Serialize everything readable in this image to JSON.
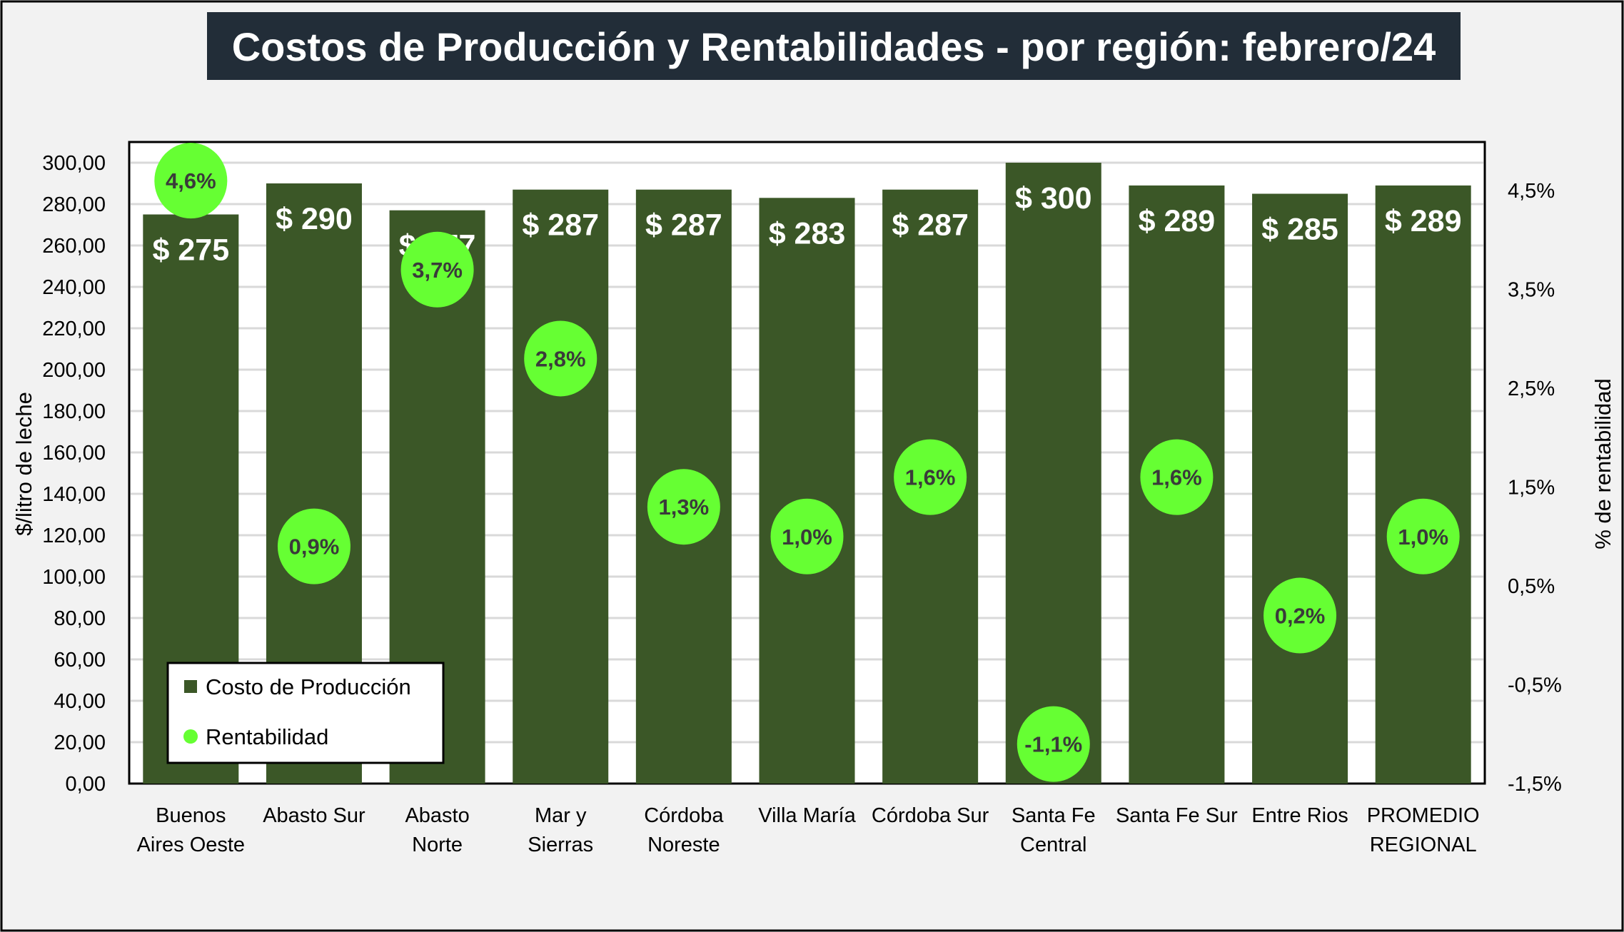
{
  "chart_data": {
    "type": "bar",
    "title": "Costos de Producción y Rentabilidades - por región: febrero/24",
    "categories": [
      [
        "Buenos",
        "Aires Oeste"
      ],
      [
        "Abasto Sur"
      ],
      [
        "Abasto",
        "Norte"
      ],
      [
        "Mar y",
        "Sierras"
      ],
      [
        "Córdoba",
        "Noreste"
      ],
      [
        "Villa María"
      ],
      [
        "Córdoba Sur"
      ],
      [
        "Santa Fe",
        "Central"
      ],
      [
        "Santa Fe Sur"
      ],
      [
        "Entre Rios"
      ],
      [
        "PROMEDIO",
        "REGIONAL"
      ]
    ],
    "series": [
      {
        "name": "Costo de Producción",
        "axis": "left",
        "type": "bar",
        "color": "#3b5727",
        "values": [
          275,
          290,
          277,
          287,
          287,
          283,
          287,
          300,
          289,
          285,
          289
        ],
        "labels": [
          "$ 275",
          "$ 290",
          "$ 277",
          "$ 287",
          "$ 287",
          "$ 283",
          "$ 287",
          "$ 300",
          "$ 289",
          "$ 285",
          "$ 289"
        ]
      },
      {
        "name": "Rentabilidad",
        "axis": "right",
        "type": "scatter",
        "color": "#66ff33",
        "values": [
          4.6,
          0.9,
          3.7,
          2.8,
          1.3,
          1.0,
          1.6,
          -1.1,
          1.6,
          0.2,
          1.0
        ],
        "labels": [
          "4,6%",
          "0,9%",
          "3,7%",
          "2,8%",
          "1,3%",
          "1,0%",
          "1,6%",
          "-1,1%",
          "1,6%",
          "0,2%",
          "1,0%"
        ]
      }
    ],
    "ylabel": "$/litro de leche",
    "y2label": "% de rentabilidad",
    "ylim": [
      0,
      300
    ],
    "y2lim": [
      -1.5,
      4.5
    ],
    "yticks": [
      "0,00",
      "20,00",
      "40,00",
      "60,00",
      "80,00",
      "100,00",
      "120,00",
      "140,00",
      "160,00",
      "180,00",
      "200,00",
      "220,00",
      "240,00",
      "260,00",
      "280,00",
      "300,00"
    ],
    "y2ticks": [
      "-1,5%",
      "-0,5%",
      "0,5%",
      "1,5%",
      "2,5%",
      "3,5%",
      "4,5%"
    ],
    "grid": true,
    "legend": "bottom-left"
  }
}
